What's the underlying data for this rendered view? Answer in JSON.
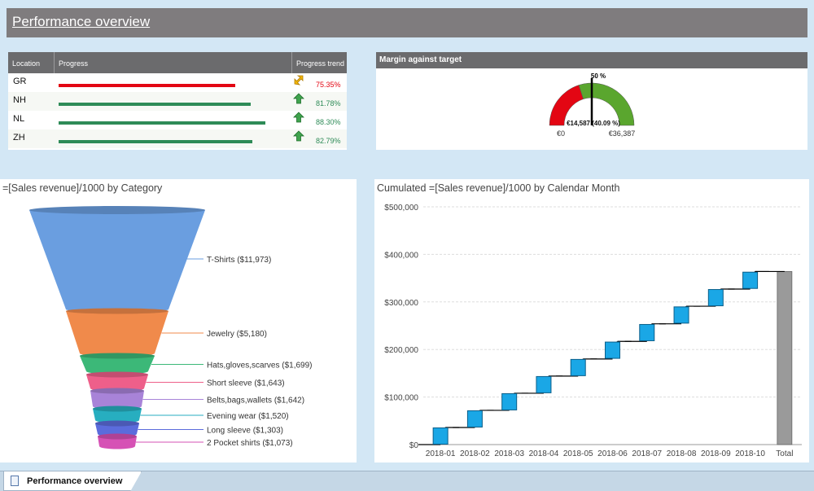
{
  "header": {
    "title": "Performance overview"
  },
  "progress_table": {
    "columns": [
      "Location",
      "Progress",
      "Progress trend"
    ],
    "rows": [
      {
        "location": "GR",
        "progress": 0.7535,
        "percent": "75.35%",
        "trend": "diagonal-up-yellow",
        "color": "#e30613"
      },
      {
        "location": "NH",
        "progress": 0.8178,
        "percent": "81.78%",
        "trend": "up-green",
        "color": "#2e8b57"
      },
      {
        "location": "NL",
        "progress": 0.883,
        "percent": "88.30%",
        "trend": "up-green",
        "color": "#2e8b57"
      },
      {
        "location": "ZH",
        "progress": 0.8279,
        "percent": "82.79%",
        "trend": "up-green",
        "color": "#2e8b57"
      }
    ]
  },
  "gauge": {
    "title": "Margin against target",
    "target_label": "50 %",
    "value_label": "€14,587 (40.09 %)",
    "min_label": "€0",
    "max_label": "€36,387",
    "value_fraction": 0.4009,
    "target_fraction": 0.5,
    "colors": {
      "low": "#e30613",
      "high": "#5aa62e"
    }
  },
  "funnel": {
    "title": "=[Sales revenue]/1000 by Category",
    "items": [
      {
        "label": "T-Shirts ($11,973)",
        "value": 11973,
        "color": "#6a9ee0"
      },
      {
        "label": "Jewelry ($5,180)",
        "value": 5180,
        "color": "#f08a4b"
      },
      {
        "label": "Hats,gloves,scarves ($1,699)",
        "value": 1699,
        "color": "#3cb878"
      },
      {
        "label": "Short sleeve ($1,643)",
        "value": 1643,
        "color": "#ee5f8a"
      },
      {
        "label": "Belts,bags,wallets ($1,642)",
        "value": 1642,
        "color": "#a883d8"
      },
      {
        "label": "Evening wear ($1,520)",
        "value": 1520,
        "color": "#27aec0"
      },
      {
        "label": "Long sleeve ($1,303)",
        "value": 1303,
        "color": "#5b6cdc"
      },
      {
        "label": "2 Pocket shirts ($1,073)",
        "value": 1073,
        "color": "#d651b5"
      }
    ]
  },
  "chart_data": {
    "type": "bar",
    "subtype": "waterfall",
    "title": "Cumulated =[Sales revenue]/1000 by Calendar Month",
    "categories": [
      "2018-01",
      "2018-02",
      "2018-03",
      "2018-04",
      "2018-05",
      "2018-06",
      "2018-07",
      "2018-08",
      "2018-09",
      "2018-10",
      "Total"
    ],
    "cumulative": [
      36000,
      72000,
      108000,
      144000,
      180000,
      217000,
      254000,
      291000,
      327000,
      364000,
      364000
    ],
    "ytick_labels": [
      "$0",
      "$100,000",
      "$200,000",
      "$300,000",
      "$400,000",
      "$500,000"
    ],
    "ylim": [
      0,
      500000
    ],
    "grid": true,
    "colors": {
      "bar": "#1aa7e6",
      "total": "#9a9a9a"
    }
  },
  "tabs": [
    {
      "label": "Performance overview"
    }
  ]
}
